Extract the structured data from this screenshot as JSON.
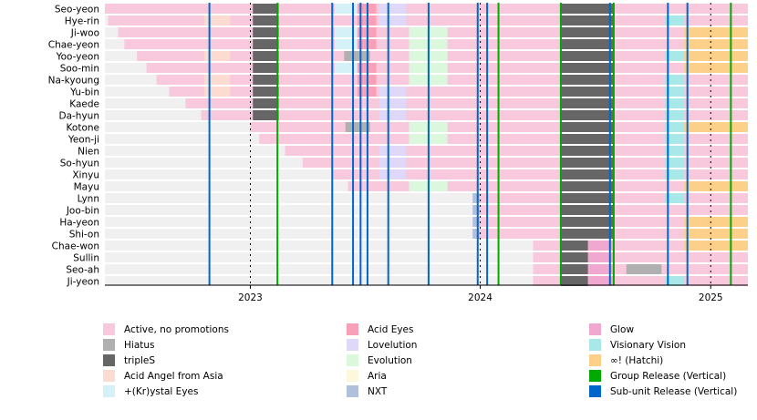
{
  "chart_data": {
    "type": "timeline",
    "title": "",
    "xlabel": "",
    "ylabel": "",
    "x_range": [
      "2022-05-15",
      "2025-03-01"
    ],
    "x_ticks": [
      "2023",
      "2024",
      "2025"
    ],
    "tick_dates": [
      "2023-01-01",
      "2024-01-01",
      "2025-01-01"
    ],
    "members": [
      "Seo-yeon",
      "Hye-rin",
      "Ji-woo",
      "Chae-yeon",
      "Yoo-yeon",
      "Soo-min",
      "Na-kyoung",
      "Yu-bin",
      "Kaede",
      "Da-hyun",
      "Kotone",
      "Yeon-ji",
      "Nien",
      "So-hyun",
      "Xinyu",
      "Mayu",
      "Lynn",
      "Joo-bin",
      "Ha-yeon",
      "Shi-on",
      "Chae-won",
      "Sullin",
      "Seo-ah",
      "Ji-yeon"
    ],
    "join_dates": [
      "2022-05-15",
      "2022-05-20",
      "2022-06-05",
      "2022-06-15",
      "2022-07-05",
      "2022-07-20",
      "2022-08-05",
      "2022-08-25",
      "2022-09-20",
      "2022-10-15",
      "2023-01-01",
      "2023-01-15",
      "2023-02-25",
      "2023-03-25",
      "2023-05-10",
      "2023-06-05",
      "2023-12-20",
      "2023-12-20",
      "2023-12-20",
      "2023-12-20",
      "2024-03-25",
      "2024-03-25",
      "2024-03-25",
      "2024-03-25"
    ],
    "categories": [
      {
        "key": "active",
        "label": "Active, no promotions",
        "color": "#f8c8dc"
      },
      {
        "key": "hiatus",
        "label": "Hiatus",
        "color": "#b0b0b0"
      },
      {
        "key": "triples",
        "label": "tripleS",
        "color": "#666666"
      },
      {
        "key": "aaa",
        "label": "Acid Angel from Asia",
        "color": "#fcdcd0"
      },
      {
        "key": "krystal",
        "label": "+(Kr)ystal Eyes",
        "color": "#d6f0f8"
      },
      {
        "key": "acideyes",
        "label": "Acid Eyes",
        "color": "#f8a0b8"
      },
      {
        "key": "lovelution",
        "label": "Lovelution",
        "color": "#e0d8f8"
      },
      {
        "key": "evolution",
        "label": "Evolution",
        "color": "#dcf8dc"
      },
      {
        "key": "aria",
        "label": "Aria",
        "color": "#fcf8dc"
      },
      {
        "key": "nxt",
        "label": "NXT",
        "color": "#b0c0dc"
      },
      {
        "key": "glow",
        "label": "Glow",
        "color": "#f0a8d0"
      },
      {
        "key": "visionary",
        "label": "Visionary Vision",
        "color": "#a8e8e8"
      },
      {
        "key": "hatchi",
        "label": "∞! (Hatchi)",
        "color": "#fcd088"
      },
      {
        "key": "group_release",
        "label": "Group Release (Vertical)",
        "color": "#00aa00"
      },
      {
        "key": "subunit_release",
        "label": "Sub-unit Release (Vertical)",
        "color": "#0066cc"
      }
    ],
    "segments": [
      [
        [
          "triples",
          "2023-01-05",
          "2023-02-15"
        ],
        [
          "krystal",
          "2023-05-15",
          "2023-06-20"
        ],
        [
          "acideyes",
          "2023-06-20",
          "2023-07-20"
        ],
        [
          "lovelution",
          "2023-07-25",
          "2023-09-05"
        ],
        [
          "triples",
          "2024-05-08",
          "2024-07-31"
        ]
      ],
      [
        [
          "aaa",
          "2022-10-20",
          "2022-11-30"
        ],
        [
          "triples",
          "2023-01-05",
          "2023-02-15"
        ],
        [
          "acideyes",
          "2023-06-20",
          "2023-07-20"
        ],
        [
          "lovelution",
          "2023-07-25",
          "2023-09-05"
        ],
        [
          "triples",
          "2024-05-08",
          "2024-07-31"
        ],
        [
          "visionary",
          "2024-10-20",
          "2024-11-20"
        ]
      ],
      [
        [
          "triples",
          "2023-01-05",
          "2023-02-15"
        ],
        [
          "krystal",
          "2023-05-15",
          "2023-06-20"
        ],
        [
          "acideyes",
          "2023-06-20",
          "2023-07-20"
        ],
        [
          "evolution",
          "2023-09-10",
          "2023-11-10"
        ],
        [
          "triples",
          "2024-05-08",
          "2024-07-31"
        ],
        [
          "hatchi",
          "2024-11-20",
          "2025-03-01"
        ]
      ],
      [
        [
          "triples",
          "2023-01-05",
          "2023-02-15"
        ],
        [
          "krystal",
          "2023-05-15",
          "2023-06-20"
        ],
        [
          "acideyes",
          "2023-06-20",
          "2023-07-20"
        ],
        [
          "evolution",
          "2023-09-10",
          "2023-11-10"
        ],
        [
          "triples",
          "2024-05-08",
          "2024-07-31"
        ],
        [
          "hatchi",
          "2024-11-20",
          "2025-03-01"
        ]
      ],
      [
        [
          "aaa",
          "2022-10-20",
          "2022-11-30"
        ],
        [
          "triples",
          "2023-01-05",
          "2023-02-15"
        ],
        [
          "hiatus",
          "2023-05-30",
          "2023-06-20"
        ],
        [
          "hiatus",
          "2023-06-20",
          "2023-07-10"
        ],
        [
          "evolution",
          "2023-09-10",
          "2023-11-10"
        ],
        [
          "triples",
          "2024-05-08",
          "2024-07-31"
        ],
        [
          "visionary",
          "2024-10-20",
          "2024-11-20"
        ],
        [
          "hatchi",
          "2024-11-20",
          "2025-03-01"
        ]
      ],
      [
        [
          "triples",
          "2023-01-05",
          "2023-02-15"
        ],
        [
          "krystal",
          "2023-05-15",
          "2023-06-20"
        ],
        [
          "acideyes",
          "2023-06-20",
          "2023-07-20"
        ],
        [
          "evolution",
          "2023-09-10",
          "2023-11-10"
        ],
        [
          "triples",
          "2024-05-08",
          "2024-07-31"
        ],
        [
          "hatchi",
          "2024-11-20",
          "2025-03-01"
        ]
      ],
      [
        [
          "aaa",
          "2022-10-20",
          "2022-11-30"
        ],
        [
          "triples",
          "2023-01-05",
          "2023-02-15"
        ],
        [
          "acideyes",
          "2023-06-20",
          "2023-07-20"
        ],
        [
          "evolution",
          "2023-09-10",
          "2023-11-10"
        ],
        [
          "triples",
          "2024-05-08",
          "2024-07-31"
        ],
        [
          "visionary",
          "2024-10-20",
          "2024-11-20"
        ]
      ],
      [
        [
          "aaa",
          "2022-10-20",
          "2022-11-30"
        ],
        [
          "triples",
          "2023-01-05",
          "2023-02-15"
        ],
        [
          "acideyes",
          "2023-06-20",
          "2023-07-20"
        ],
        [
          "lovelution",
          "2023-07-25",
          "2023-09-05"
        ],
        [
          "triples",
          "2024-05-08",
          "2024-07-31"
        ],
        [
          "visionary",
          "2024-10-20",
          "2024-11-20"
        ]
      ],
      [
        [
          "triples",
          "2023-01-05",
          "2023-02-15"
        ],
        [
          "lovelution",
          "2023-07-25",
          "2023-09-05"
        ],
        [
          "triples",
          "2024-05-08",
          "2024-07-31"
        ],
        [
          "visionary",
          "2024-10-20",
          "2024-11-20"
        ]
      ],
      [
        [
          "triples",
          "2023-01-05",
          "2023-02-15"
        ],
        [
          "lovelution",
          "2023-07-25",
          "2023-09-05"
        ],
        [
          "triples",
          "2024-05-08",
          "2024-07-31"
        ],
        [
          "visionary",
          "2024-10-20",
          "2024-11-20"
        ]
      ],
      [
        [
          "hiatus",
          "2023-06-01",
          "2023-07-10"
        ],
        [
          "evolution",
          "2023-09-10",
          "2023-11-10"
        ],
        [
          "triples",
          "2024-05-08",
          "2024-07-31"
        ],
        [
          "visionary",
          "2024-10-20",
          "2024-11-20"
        ],
        [
          "hatchi",
          "2024-11-20",
          "2025-03-01"
        ]
      ],
      [
        [
          "evolution",
          "2023-09-10",
          "2023-11-10"
        ],
        [
          "triples",
          "2024-05-08",
          "2024-07-31"
        ],
        [
          "visionary",
          "2024-10-20",
          "2024-11-20"
        ]
      ],
      [
        [
          "lovelution",
          "2023-07-25",
          "2023-09-05"
        ],
        [
          "triples",
          "2024-05-08",
          "2024-07-31"
        ],
        [
          "visionary",
          "2024-10-20",
          "2024-11-20"
        ]
      ],
      [
        [
          "lovelution",
          "2023-07-25",
          "2023-09-05"
        ],
        [
          "triples",
          "2024-05-08",
          "2024-07-31"
        ],
        [
          "visionary",
          "2024-10-20",
          "2024-11-20"
        ]
      ],
      [
        [
          "lovelution",
          "2023-07-25",
          "2023-09-05"
        ],
        [
          "triples",
          "2024-05-08",
          "2024-07-31"
        ],
        [
          "visionary",
          "2024-10-20",
          "2024-11-20"
        ]
      ],
      [
        [
          "evolution",
          "2023-09-10",
          "2023-11-10"
        ],
        [
          "triples",
          "2024-05-08",
          "2024-07-31"
        ],
        [
          "hatchi",
          "2024-11-20",
          "2025-03-01"
        ]
      ],
      [
        [
          "nxt",
          "2023-12-20",
          "2023-12-31"
        ],
        [
          "triples",
          "2024-05-08",
          "2024-07-31"
        ],
        [
          "visionary",
          "2024-10-20",
          "2024-11-20"
        ]
      ],
      [
        [
          "nxt",
          "2023-12-20",
          "2023-12-31"
        ],
        [
          "triples",
          "2024-05-08",
          "2024-07-31"
        ]
      ],
      [
        [
          "nxt",
          "2023-12-20",
          "2023-12-31"
        ],
        [
          "triples",
          "2024-05-08",
          "2024-07-31"
        ],
        [
          "hatchi",
          "2024-11-20",
          "2025-03-01"
        ]
      ],
      [
        [
          "nxt",
          "2023-12-20",
          "2023-12-31"
        ],
        [
          "triples",
          "2024-05-08",
          "2024-07-31"
        ],
        [
          "hatchi",
          "2024-11-20",
          "2025-03-01"
        ]
      ],
      [
        [
          "triples",
          "2024-05-08",
          "2024-07-31"
        ],
        [
          "glow",
          "2024-06-20",
          "2024-07-31"
        ],
        [
          "hatchi",
          "2024-11-20",
          "2025-03-01"
        ]
      ],
      [
        [
          "triples",
          "2024-05-08",
          "2024-07-31"
        ],
        [
          "glow",
          "2024-06-20",
          "2024-07-31"
        ]
      ],
      [
        [
          "triples",
          "2024-05-08",
          "2024-07-31"
        ],
        [
          "glow",
          "2024-06-20",
          "2024-07-31"
        ],
        [
          "hiatus",
          "2024-08-20",
          "2024-10-15"
        ]
      ],
      [
        [
          "triples",
          "2024-05-08",
          "2024-07-31"
        ],
        [
          "glow",
          "2024-06-20",
          "2024-07-31"
        ],
        [
          "visionary",
          "2024-10-20",
          "2024-11-20"
        ]
      ]
    ],
    "group_releases": [
      "2023-02-13",
      "2024-01-30",
      "2024-05-08",
      "2024-07-31",
      "2025-02-02"
    ],
    "subunit_releases": [
      "2022-10-28",
      "2023-05-11",
      "2023-06-13",
      "2023-06-25",
      "2023-07-06",
      "2023-08-08",
      "2023-10-11",
      "2023-12-28",
      "2024-01-12",
      "2024-07-25",
      "2024-10-25",
      "2024-11-25"
    ],
    "dotted_line_dates": [
      "2023-01-01",
      "2024-01-01",
      "2025-01-01"
    ]
  }
}
